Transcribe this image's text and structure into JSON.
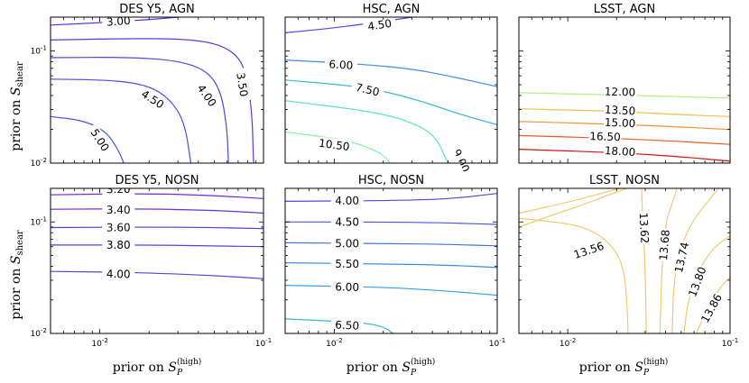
{
  "figure": {
    "xlabel_prefix": "prior on ",
    "xlabel_var": "S",
    "xlabel_sub": "P",
    "xlabel_sup": "(high)",
    "ylabel_prefix": "prior on ",
    "ylabel_var": "S",
    "ylabel_sub": "shear"
  },
  "chart_data": [
    {
      "type": "contour",
      "title": "DES Y5, AGN",
      "xscale": "log",
      "yscale": "log",
      "xlim": [
        0.005,
        0.1
      ],
      "ylim": [
        0.01,
        0.2
      ],
      "xticks": [],
      "yticks": [
        "10^-1",
        "10^-2"
      ],
      "levels": [
        {
          "label": "3.00",
          "color": "#6a2fe0",
          "points": [
            [
              0.005,
              0.17
            ],
            [
              0.01,
              0.178
            ],
            [
              0.02,
              0.19
            ],
            [
              0.03,
              0.2
            ]
          ],
          "label_at": [
            0.013,
            0.183
          ]
        },
        {
          "label": "3.50",
          "color": "#6236e0",
          "points": [
            [
              0.005,
              0.125
            ],
            [
              0.02,
              0.13
            ],
            [
              0.04,
              0.125
            ],
            [
              0.06,
              0.108
            ],
            [
              0.077,
              0.075
            ],
            [
              0.085,
              0.03
            ],
            [
              0.087,
              0.01
            ]
          ],
          "label_at": [
            0.074,
            0.05
          ]
        },
        {
          "label": "4.00",
          "color": "#5a40e0",
          "points": [
            [
              0.005,
              0.087
            ],
            [
              0.015,
              0.088
            ],
            [
              0.03,
              0.082
            ],
            [
              0.045,
              0.067
            ],
            [
              0.055,
              0.044
            ],
            [
              0.06,
              0.02
            ],
            [
              0.061,
              0.01
            ]
          ],
          "label_at": [
            0.045,
            0.04
          ]
        },
        {
          "label": "4.50",
          "color": "#4f4be0",
          "points": [
            [
              0.005,
              0.056
            ],
            [
              0.012,
              0.055
            ],
            [
              0.02,
              0.049
            ],
            [
              0.027,
              0.037
            ],
            [
              0.033,
              0.023
            ],
            [
              0.036,
              0.01
            ]
          ],
          "label_at": [
            0.021,
            0.037
          ]
        },
        {
          "label": "5.00",
          "color": "#4a53e0",
          "points": [
            [
              0.005,
              0.026
            ],
            [
              0.008,
              0.024
            ],
            [
              0.011,
              0.019
            ],
            [
              0.013,
              0.013
            ],
            [
              0.014,
              0.01
            ]
          ],
          "label_at": [
            0.01,
            0.016
          ]
        }
      ]
    },
    {
      "type": "contour",
      "title": "HSC, AGN",
      "xscale": "log",
      "yscale": "log",
      "xlim": [
        0.005,
        0.1
      ],
      "ylim": [
        0.01,
        0.2
      ],
      "xticks": [],
      "yticks": [],
      "levels": [
        {
          "label": "4.50",
          "color": "#5a40e0",
          "points": [
            [
              0.005,
              0.145
            ],
            [
              0.01,
              0.16
            ],
            [
              0.02,
              0.183
            ],
            [
              0.03,
              0.2
            ]
          ],
          "label_at": [
            0.019,
            0.17
          ]
        },
        {
          "label": "6.00",
          "color": "#3d8de6",
          "points": [
            [
              0.005,
              0.083
            ],
            [
              0.015,
              0.076
            ],
            [
              0.03,
              0.069
            ],
            [
              0.05,
              0.06
            ],
            [
              0.1,
              0.048
            ]
          ],
          "label_at": [
            0.011,
            0.075
          ]
        },
        {
          "label": "7.50",
          "color": "#3ab7d9",
          "points": [
            [
              0.005,
              0.055
            ],
            [
              0.015,
              0.048
            ],
            [
              0.03,
              0.038
            ],
            [
              0.06,
              0.027
            ],
            [
              0.1,
              0.022
            ]
          ],
          "label_at": [
            0.016,
            0.045
          ]
        },
        {
          "label": "9.00",
          "color": "#57e2c0",
          "points": [
            [
              0.005,
              0.036
            ],
            [
              0.02,
              0.028
            ],
            [
              0.035,
              0.021
            ],
            [
              0.043,
              0.016
            ],
            [
              0.047,
              0.012
            ],
            [
              0.05,
              0.01
            ]
          ],
          "label_at": [
            0.06,
            0.0105
          ]
        },
        {
          "label": "10.50",
          "color": "#7cf3a3",
          "points": [
            [
              0.005,
              0.019
            ],
            [
              0.012,
              0.016
            ],
            [
              0.018,
              0.013
            ],
            [
              0.021,
              0.011
            ],
            [
              0.022,
              0.01
            ]
          ],
          "label_at": [
            0.01,
            0.0145
          ]
        }
      ]
    },
    {
      "type": "contour",
      "title": "LSST, AGN",
      "xscale": "log",
      "yscale": "log",
      "xlim": [
        0.005,
        0.1
      ],
      "ylim": [
        0.01,
        0.2
      ],
      "xticks": [],
      "yticks": [],
      "levels": [
        {
          "label": "12.00",
          "color": "#b6ef83",
          "points": [
            [
              0.005,
              0.0425
            ],
            [
              0.02,
              0.0405
            ],
            [
              0.05,
              0.039
            ],
            [
              0.1,
              0.038
            ]
          ],
          "label_at": [
            0.021,
            0.043
          ]
        },
        {
          "label": "13.50",
          "color": "#f0c050",
          "points": [
            [
              0.005,
              0.0305
            ],
            [
              0.02,
              0.029
            ],
            [
              0.05,
              0.027
            ],
            [
              0.1,
              0.026
            ]
          ],
          "label_at": [
            0.021,
            0.0295
          ]
        },
        {
          "label": "15.00",
          "color": "#f09138",
          "points": [
            [
              0.005,
              0.0235
            ],
            [
              0.02,
              0.0222
            ],
            [
              0.05,
              0.021
            ],
            [
              0.1,
              0.0199
            ]
          ],
          "label_at": [
            0.021,
            0.0228
          ]
        },
        {
          "label": "16.50",
          "color": "#e85c20",
          "points": [
            [
              0.005,
              0.0176
            ],
            [
              0.02,
              0.0166
            ],
            [
              0.05,
              0.0156
            ],
            [
              0.1,
              0.0147
            ]
          ],
          "label_at": [
            0.017,
            0.0172
          ]
        },
        {
          "label": "18.00",
          "color": "#d0160c",
          "points": [
            [
              0.005,
              0.0133
            ],
            [
              0.02,
              0.0124
            ],
            [
              0.05,
              0.0114
            ],
            [
              0.1,
              0.0104
            ]
          ],
          "label_at": [
            0.021,
            0.0127
          ]
        }
      ]
    },
    {
      "type": "contour",
      "title": "DES Y5, NOSN",
      "xscale": "log",
      "yscale": "log",
      "xlim": [
        0.005,
        0.1
      ],
      "ylim": [
        0.01,
        0.2
      ],
      "xticks": [
        "10^-2",
        "10^-1"
      ],
      "yticks": [
        "10^-1",
        "10^-2"
      ],
      "levels": [
        {
          "label": "3.20",
          "color": "#6e28e0",
          "points": [
            [
              0.005,
              0.175
            ],
            [
              0.02,
              0.18
            ],
            [
              0.05,
              0.172
            ],
            [
              0.1,
              0.162
            ]
          ],
          "label_at": [
            0.013,
            0.196
          ]
        },
        {
          "label": "3.40",
          "color": "#6830e0",
          "points": [
            [
              0.005,
              0.13
            ],
            [
              0.02,
              0.131
            ],
            [
              0.05,
              0.127
            ],
            [
              0.1,
              0.12
            ]
          ],
          "label_at": [
            0.013,
            0.128
          ]
        },
        {
          "label": "3.60",
          "color": "#6136e0",
          "points": [
            [
              0.005,
              0.089
            ],
            [
              0.02,
              0.09
            ],
            [
              0.05,
              0.089
            ],
            [
              0.1,
              0.087
            ]
          ],
          "label_at": [
            0.013,
            0.089
          ]
        },
        {
          "label": "3.80",
          "color": "#583ee0",
          "points": [
            [
              0.005,
              0.062
            ],
            [
              0.02,
              0.062
            ],
            [
              0.05,
              0.061
            ],
            [
              0.1,
              0.06
            ]
          ],
          "label_at": [
            0.013,
            0.062
          ]
        },
        {
          "label": "4.00",
          "color": "#5046e0",
          "points": [
            [
              0.005,
              0.036
            ],
            [
              0.02,
              0.035
            ],
            [
              0.05,
              0.033
            ],
            [
              0.1,
              0.031
            ]
          ],
          "label_at": [
            0.013,
            0.034
          ]
        }
      ]
    },
    {
      "type": "contour",
      "title": "HSC, NOSN",
      "xscale": "log",
      "yscale": "log",
      "xlim": [
        0.005,
        0.1
      ],
      "ylim": [
        0.01,
        0.2
      ],
      "xticks": [
        "10^-2",
        "10^-1"
      ],
      "yticks": [],
      "levels": [
        {
          "label": "4.00",
          "color": "#5a40e0",
          "points": [
            [
              0.005,
              0.153
            ],
            [
              0.02,
              0.155
            ],
            [
              0.05,
              0.16
            ],
            [
              0.1,
              0.18
            ]
          ],
          "label_at": [
            0.012,
            0.155
          ]
        },
        {
          "label": "4.50",
          "color": "#4a5ae0",
          "points": [
            [
              0.005,
              0.1
            ],
            [
              0.02,
              0.1
            ],
            [
              0.05,
              0.098
            ],
            [
              0.1,
              0.095
            ]
          ],
          "label_at": [
            0.012,
            0.1
          ]
        },
        {
          "label": "5.00",
          "color": "#3f72e3",
          "points": [
            [
              0.005,
              0.065
            ],
            [
              0.02,
              0.064
            ],
            [
              0.05,
              0.063
            ],
            [
              0.1,
              0.061
            ]
          ],
          "label_at": [
            0.012,
            0.064
          ]
        },
        {
          "label": "5.50",
          "color": "#3a8ae4",
          "points": [
            [
              0.005,
              0.043
            ],
            [
              0.02,
              0.042
            ],
            [
              0.05,
              0.041
            ],
            [
              0.1,
              0.039
            ]
          ],
          "label_at": [
            0.012,
            0.042
          ]
        },
        {
          "label": "6.00",
          "color": "#37a0e2",
          "points": [
            [
              0.005,
              0.027
            ],
            [
              0.02,
              0.026
            ],
            [
              0.05,
              0.024
            ],
            [
              0.1,
              0.022
            ]
          ],
          "label_at": [
            0.012,
            0.026
          ]
        },
        {
          "label": "6.50",
          "color": "#36b8d5",
          "points": [
            [
              0.005,
              0.0135
            ],
            [
              0.015,
              0.0125
            ],
            [
              0.02,
              0.0115
            ],
            [
              0.023,
              0.01
            ]
          ],
          "label_at": [
            0.012,
            0.0118
          ]
        }
      ]
    },
    {
      "type": "contour",
      "title": "LSST, NOSN",
      "xscale": "log",
      "yscale": "log",
      "xlim": [
        0.005,
        0.1
      ],
      "ylim": [
        0.01,
        0.2
      ],
      "xticks": [
        "10^-2",
        "10^-1"
      ],
      "yticks": [],
      "levels": [
        {
          "label": "13.56",
          "color": "#f2c96e",
          "points": [
            [
              0.005,
              0.09
            ],
            [
              0.008,
              0.115
            ],
            [
              0.012,
              0.14
            ],
            [
              0.017,
              0.17
            ],
            [
              0.023,
              0.2
            ]
          ],
          "label_at": [
            0.0135,
            0.0555
          ]
        },
        {
          "label": "13.56",
          "color": "#f2c96e",
          "points": [
            [
              0.005,
              0.12
            ],
            [
              0.01,
              0.15
            ],
            [
              0.016,
              0.18
            ],
            [
              0.021,
              0.2
            ]
          ],
          "label_at": [
            0.0135,
            0.0555
          ],
          "hide_label": true
        },
        {
          "label": "13.56",
          "color": "#f2c96e",
          "points": [
            [
              0.0235,
              0.01
            ],
            [
              0.0232,
              0.02
            ],
            [
              0.022,
              0.04
            ],
            [
              0.019,
              0.06
            ],
            [
              0.015,
              0.08
            ],
            [
              0.011,
              0.095
            ],
            [
              0.006,
              0.105
            ],
            [
              0.005,
              0.108
            ]
          ],
          "label_at": [
            0.0135,
            0.0555
          ],
          "hide_label": true
        },
        {
          "label": "13.62",
          "color": "#f2c96e",
          "points": [
            [
              0.0305,
              0.01
            ],
            [
              0.03,
              0.04
            ],
            [
              0.029,
              0.1
            ],
            [
              0.0285,
              0.2
            ]
          ],
          "label_at": [
            0.0295,
            0.088
          ]
        },
        {
          "label": "13.68",
          "color": "#f2c96e",
          "points": [
            [
              0.037,
              0.01
            ],
            [
              0.038,
              0.04
            ],
            [
              0.04,
              0.1
            ],
            [
              0.045,
              0.16
            ],
            [
              0.047,
              0.2
            ]
          ],
          "label_at": [
            0.0395,
            0.062
          ]
        },
        {
          "label": "13.74",
          "color": "#f2c96e",
          "points": [
            [
              0.044,
              0.01
            ],
            [
              0.045,
              0.03
            ],
            [
              0.05,
              0.06
            ],
            [
              0.058,
              0.1
            ],
            [
              0.075,
              0.16
            ],
            [
              0.085,
              0.2
            ]
          ],
          "label_at": [
            0.0505,
            0.048
          ]
        },
        {
          "label": "13.80",
          "color": "#f2c96e",
          "points": [
            [
              0.052,
              0.01
            ],
            [
              0.055,
              0.02
            ],
            [
              0.066,
              0.04
            ],
            [
              0.08,
              0.06
            ],
            [
              0.1,
              0.075
            ]
          ],
          "label_at": [
            0.063,
            0.029
          ]
        },
        {
          "label": "13.86",
          "color": "#f2c96e",
          "points": [
            [
              0.062,
              0.01
            ],
            [
              0.07,
              0.015
            ],
            [
              0.085,
              0.025
            ],
            [
              0.1,
              0.032
            ]
          ],
          "label_at": [
            0.077,
            0.0168
          ]
        }
      ]
    }
  ]
}
